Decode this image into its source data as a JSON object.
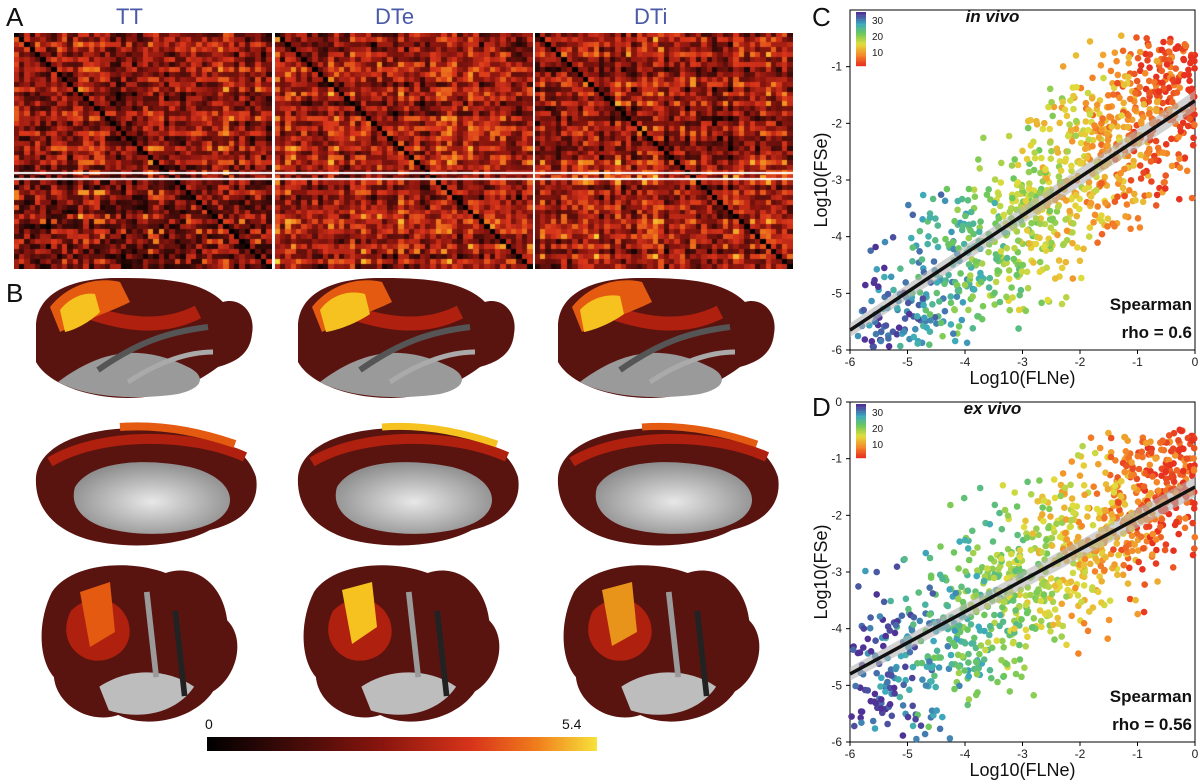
{
  "panels": {
    "a": "A",
    "b": "B",
    "c": "C",
    "d": "D"
  },
  "matrix_titles": [
    "TT",
    "DTe",
    "DTi"
  ],
  "colorbar": {
    "min": "0",
    "max": "5.4"
  },
  "brain_colors": {
    "dark": "#5a1410",
    "red": "#b0200e",
    "orange": "#e45a10",
    "yellow": "#f5c220",
    "gray": "#9a9a9a",
    "light": "#cccccc"
  },
  "chart_data": [
    {
      "type": "scatter",
      "title": "in vivo",
      "xlabel": "Log10(FLNe)",
      "ylabel": "Log10(FSe)",
      "xlim": [
        -6,
        0
      ],
      "ylim": [
        -6,
        0
      ],
      "xticks": [
        "-6",
        "-5",
        "-4",
        "-3",
        "-2",
        "-1",
        "0"
      ],
      "yticks": [
        "-1",
        "-2",
        "-3",
        "-4",
        "-5",
        "-6"
      ],
      "legend": {
        "values": [
          "30",
          "20",
          "10"
        ],
        "colormap": "distance (violet=far, red=near)"
      },
      "fit": {
        "x": [
          -6,
          0
        ],
        "y": [
          -5.65,
          -1.6
        ]
      },
      "annotation": [
        "Spearman",
        "rho =  0.6"
      ],
      "n_points": 1100
    },
    {
      "type": "scatter",
      "title": "ex vivo",
      "xlabel": "Log10(FLNe)",
      "ylabel": "Log10(FSe)",
      "xlim": [
        -6,
        0
      ],
      "ylim": [
        -6,
        0
      ],
      "xticks": [
        "-6",
        "-5",
        "-4",
        "-3",
        "-2",
        "-1",
        "0"
      ],
      "yticks": [
        "0",
        "-1",
        "-2",
        "-3",
        "-4",
        "-5",
        "-6"
      ],
      "legend": {
        "values": [
          "30",
          "20",
          "10"
        ],
        "colormap": "distance (violet=far, red=near)"
      },
      "fit": {
        "x": [
          -6,
          0
        ],
        "y": [
          -4.8,
          -1.5
        ]
      },
      "annotation": [
        "Spearman",
        "rho =  0.56"
      ],
      "n_points": 1100
    }
  ]
}
